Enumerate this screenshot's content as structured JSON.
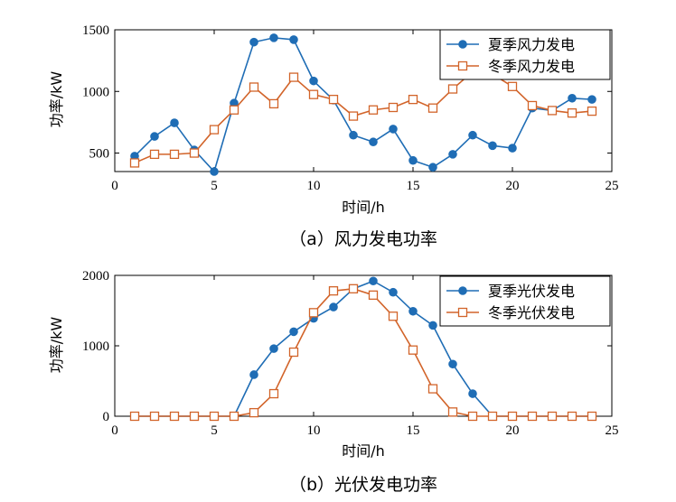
{
  "colors": {
    "summer": "#1f6db5",
    "winter": "#d2642a",
    "axis": "#000000",
    "background": "#ffffff"
  },
  "chart_data": [
    {
      "type": "line",
      "caption": "（a）风力发电功率",
      "xlabel": "时间/h",
      "ylabel": "功率/kW",
      "xlim": [
        0,
        25
      ],
      "ylim": [
        350,
        1500
      ],
      "xticks": [
        0,
        5,
        10,
        15,
        20,
        25
      ],
      "yticks": [
        500,
        1000,
        1500
      ],
      "grid": false,
      "legend_position": "top-right",
      "x": [
        1,
        2,
        3,
        4,
        5,
        6,
        7,
        8,
        9,
        10,
        11,
        12,
        13,
        14,
        15,
        16,
        17,
        18,
        19,
        20,
        21,
        22,
        23,
        24
      ],
      "series": [
        {
          "name": "夏季风力发电",
          "marker": "filled-circle",
          "values": [
            475,
            635,
            745,
            525,
            350,
            905,
            1400,
            1435,
            1420,
            1085,
            930,
            645,
            590,
            695,
            440,
            385,
            490,
            645,
            560,
            540,
            865,
            845,
            945,
            935
          ]
        },
        {
          "name": "冬季风力发电",
          "marker": "hollow-square",
          "values": [
            420,
            490,
            490,
            500,
            690,
            850,
            1035,
            900,
            1115,
            975,
            935,
            800,
            850,
            870,
            935,
            865,
            1020,
            1160,
            1140,
            1040,
            885,
            845,
            825,
            840
          ]
        }
      ]
    },
    {
      "type": "line",
      "caption": "（b）光伏发电功率",
      "xlabel": "时间/h",
      "ylabel": "功率/kW",
      "xlim": [
        0,
        25
      ],
      "ylim": [
        0,
        2000
      ],
      "xticks": [
        0,
        5,
        10,
        15,
        20,
        25
      ],
      "yticks": [
        0,
        1000,
        2000
      ],
      "grid": false,
      "legend_position": "top-right",
      "x": [
        1,
        2,
        3,
        4,
        5,
        6,
        7,
        8,
        9,
        10,
        11,
        12,
        13,
        14,
        15,
        16,
        17,
        18,
        19,
        20,
        21,
        22,
        23,
        24
      ],
      "series": [
        {
          "name": "夏季光伏发电",
          "marker": "filled-circle",
          "values": [
            0,
            0,
            0,
            0,
            0,
            0,
            590,
            960,
            1200,
            1390,
            1550,
            1810,
            1920,
            1760,
            1490,
            1290,
            740,
            320,
            0,
            0,
            0,
            0,
            0,
            0
          ]
        },
        {
          "name": "冬季光伏发电",
          "marker": "hollow-square",
          "values": [
            0,
            0,
            0,
            0,
            0,
            0,
            50,
            320,
            910,
            1470,
            1780,
            1810,
            1720,
            1420,
            940,
            390,
            60,
            0,
            0,
            0,
            0,
            0,
            0,
            0
          ]
        }
      ]
    }
  ]
}
